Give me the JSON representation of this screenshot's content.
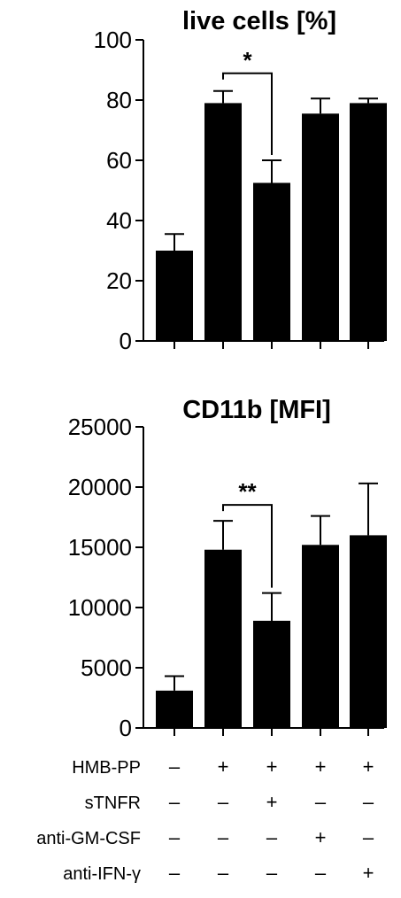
{
  "chart_data": [
    {
      "type": "bar",
      "title": "live cells [%]",
      "xlabel": "",
      "ylabel": "",
      "ylim": [
        0,
        100
      ],
      "yticks": [
        "0",
        "20",
        "40",
        "60",
        "80",
        "100"
      ],
      "values": [
        30,
        79,
        52.5,
        75.5,
        79
      ],
      "errors": [
        5.5,
        4,
        7.5,
        5,
        1.5
      ],
      "significance": {
        "from": 1,
        "to": 2,
        "label": "*"
      },
      "bar_color": "#000000"
    },
    {
      "type": "bar",
      "title": "CD11b [MFI]",
      "xlabel": "",
      "ylabel": "",
      "ylim": [
        0,
        25000
      ],
      "yticks": [
        "0",
        "5000",
        "10000",
        "15000",
        "20000",
        "25000"
      ],
      "values": [
        3100,
        14800,
        8900,
        15200,
        16000
      ],
      "errors": [
        1200,
        2400,
        2300,
        2400,
        4300
      ],
      "significance": {
        "from": 1,
        "to": 2,
        "label": "**"
      },
      "bar_color": "#000000"
    }
  ],
  "conditions": [
    {
      "label": "HMB-PP",
      "signs": [
        "–",
        "+",
        "+",
        "+",
        "+"
      ]
    },
    {
      "label": "sTNFR",
      "signs": [
        "–",
        "–",
        "+",
        "–",
        "–"
      ]
    },
    {
      "label": "anti-GM-CSF",
      "signs": [
        "–",
        "–",
        "–",
        "+",
        "–"
      ]
    },
    {
      "label": "anti-IFN-γ",
      "signs": [
        "–",
        "–",
        "–",
        "–",
        "+"
      ]
    }
  ]
}
